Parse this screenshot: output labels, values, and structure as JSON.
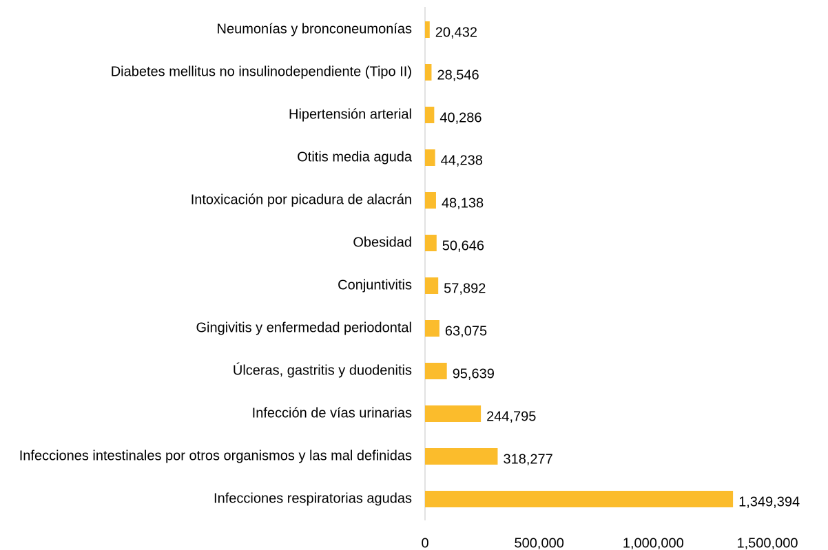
{
  "chart_data": {
    "type": "barh",
    "categories": [
      "Neumonías y bronconeumonías",
      "Diabetes mellitus no insulinodependiente (Tipo II)",
      "Hipertensión arterial",
      "Otitis media aguda",
      "Intoxicación por picadura de alacrán",
      "Obesidad",
      "Conjuntivitis",
      "Gingivitis y enfermedad periodontal",
      "Úlceras, gastritis y duodenitis",
      "Infección de vías urinarias",
      "Infecciones intestinales por otros organismos y las mal definidas",
      "Infecciones respiratorias agudas"
    ],
    "values": [
      20432,
      28546,
      40286,
      44238,
      48138,
      50646,
      57892,
      63075,
      95639,
      244795,
      318277,
      1349394
    ],
    "value_labels": [
      "20,432",
      "28,546",
      "40,286",
      "44,238",
      "48,138",
      "50,646",
      "57,892",
      "63,075",
      "95,639",
      "244,795",
      "318,277",
      "1,349,394"
    ],
    "color": "#fbbc2c",
    "xlim": [
      0,
      1500000
    ],
    "xticks": [
      0,
      {
        "value": 500000,
        "label": "500,000"
      },
      {
        "value": 1000000,
        "label": "1,000,000"
      },
      {
        "value": 1500000,
        "label": "1,500,000"
      }
    ],
    "grid": false
  }
}
